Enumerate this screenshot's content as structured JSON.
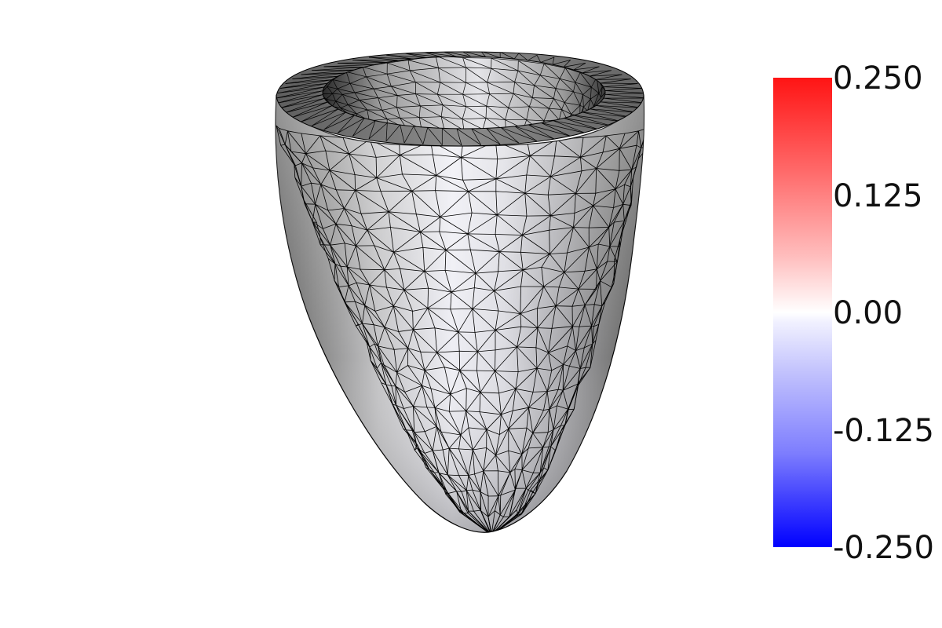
{
  "scene": {
    "background": "#ffffff",
    "mesh_fill_light": "#f4f4fb",
    "mesh_fill_dark": "#6e6e6e",
    "mesh_edge_color": "#000000"
  },
  "colorbar": {
    "max_color": "#ff1414",
    "mid_color": "#ffffff",
    "min_color": "#0000ff",
    "tick_labels": [
      "0.250",
      "0.125",
      "0.00",
      "-0.125",
      "-0.250"
    ]
  }
}
